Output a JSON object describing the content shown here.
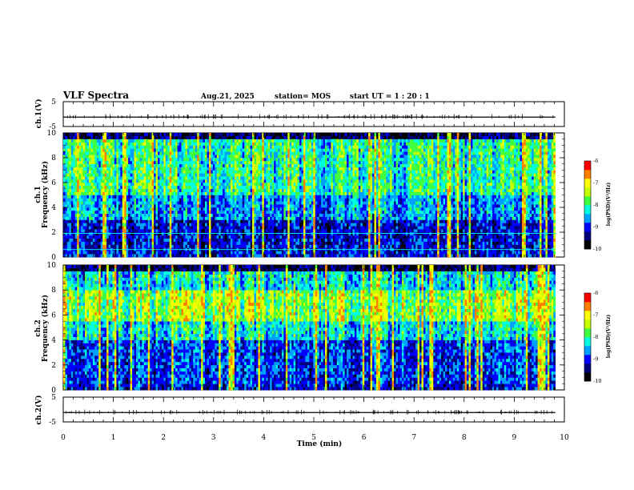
{
  "header": {
    "title": "VLF Spectra",
    "date": "Aug.21, 2025",
    "station": "station= MOS",
    "start": "start  UT  =   1 : 20 : 1"
  },
  "colors": {
    "colormap": [
      "#000000",
      "#00007a",
      "#0000ff",
      "#00a0ff",
      "#00ffe0",
      "#40ff40",
      "#c8ff00",
      "#ffff00",
      "#ff8000",
      "#ff0000",
      "#ffffff"
    ],
    "trace": "#000000",
    "marker_line": "#00ffff"
  },
  "chart_data": [
    {
      "type": "line",
      "panel": "ch1-waveform",
      "ylabel": "ch.1(V)",
      "ylim": [
        -5,
        5
      ],
      "yticks": [
        "5",
        "-5"
      ],
      "xlim": [
        0,
        10
      ],
      "description_value": "near-constant trace slightly below 0 V with sparse small spikes",
      "baseline_y": -1.2
    },
    {
      "type": "heatmap",
      "panel": "ch1-spectrogram",
      "ylabel_line1": "ch.1",
      "ylabel_line2": "Frequency (kHz)",
      "xlim": [
        0,
        9.82
      ],
      "ylim": [
        0,
        10
      ],
      "yticks": [
        "0",
        "2",
        "4",
        "6",
        "8",
        "10"
      ],
      "colorbar": {
        "label": "log(PSD)(V²/Hz)",
        "range": [
          -10,
          -6
        ],
        "ticks": [
          "-6",
          "-7",
          "-8",
          "-9",
          "-10"
        ]
      },
      "horizontal_lines_khz": [
        0.6,
        1.9
      ],
      "profile": "broadband emission; strongest 5-9 kHz, quiet band 1-3 kHz"
    },
    {
      "type": "heatmap",
      "panel": "ch2-spectrogram",
      "ylabel_line1": "ch.2",
      "ylabel_line2": "Frequency (kHz)",
      "xlim": [
        0,
        9.82
      ],
      "ylim": [
        0,
        10
      ],
      "yticks": [
        "0",
        "2",
        "4",
        "6",
        "8",
        "10"
      ],
      "colorbar": {
        "label": "log(PSD)(V²/Hz)",
        "range": [
          -10,
          -6
        ],
        "ticks": [
          "-6",
          "-7",
          "-8",
          "-9",
          "-10"
        ]
      },
      "profile": "strong band 6-8 kHz with red patches, weaker below 4 kHz"
    },
    {
      "type": "line",
      "panel": "ch2-waveform",
      "ylabel": "ch.2(V)",
      "ylim": [
        -5,
        5
      ],
      "yticks": [
        "5",
        "-5"
      ],
      "xlim": [
        0,
        10
      ],
      "baseline_y": -1.2
    }
  ],
  "xaxis": {
    "label": "Time  (min)",
    "ticks": [
      "0",
      "1",
      "2",
      "3",
      "4",
      "5",
      "6",
      "7",
      "8",
      "9",
      "10"
    ],
    "range": [
      0,
      10
    ]
  }
}
